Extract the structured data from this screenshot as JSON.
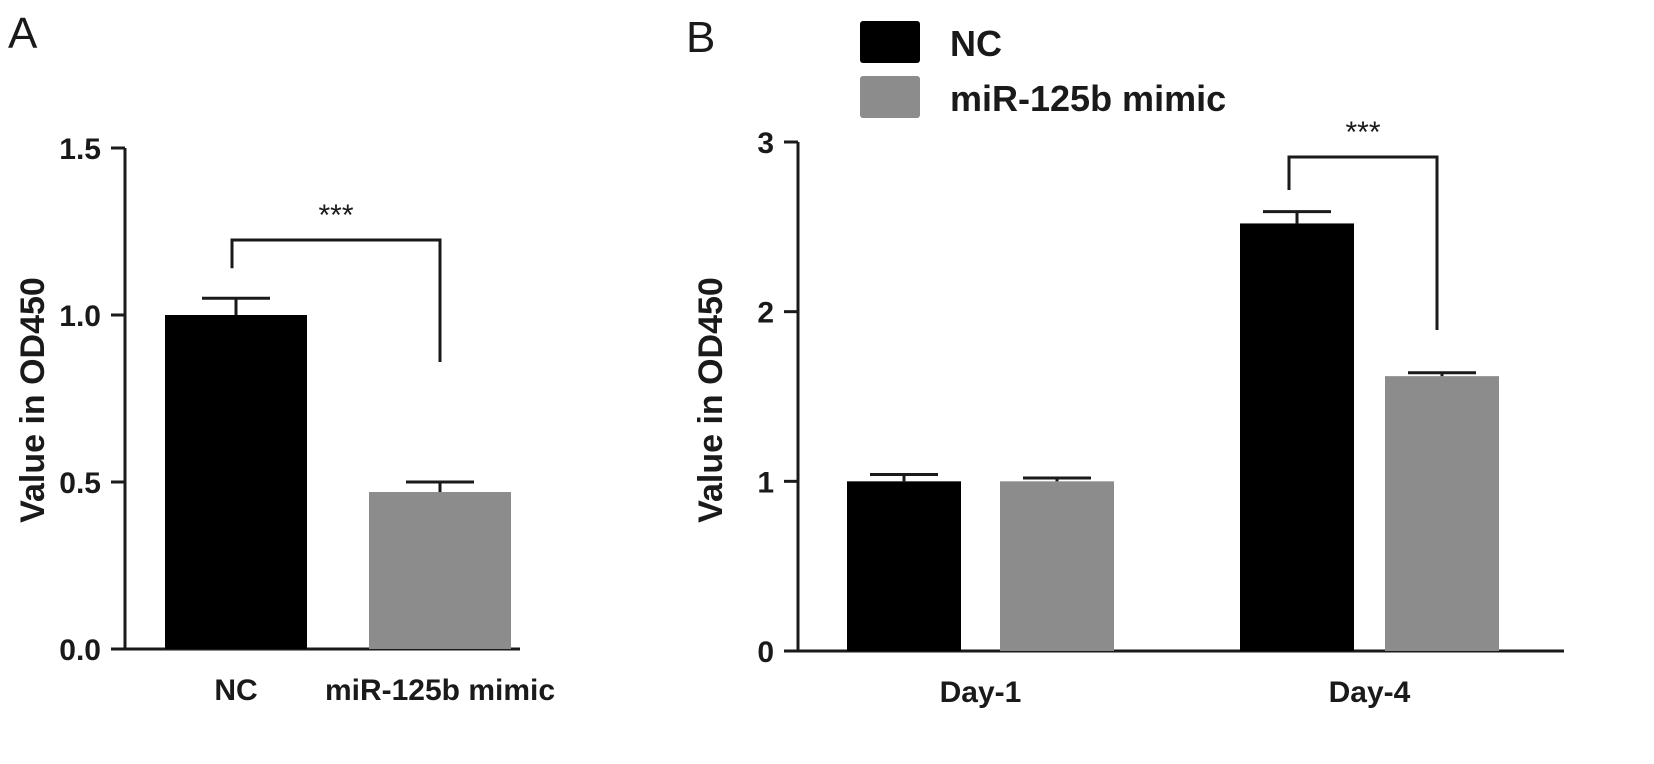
{
  "colors": {
    "nc": "#000000",
    "mimic": "#8c8c8c",
    "axis": "#1a1a1a"
  },
  "chart_data": [
    {
      "type": "bar",
      "panel": "A",
      "title": "",
      "xlabel": "",
      "ylabel": "Value in OD450",
      "ylim": [
        0,
        1.5
      ],
      "yticks": [
        "0.0",
        "0.5",
        "1.0",
        "1.5"
      ],
      "categories": [
        "NC",
        "miR-125b mimic"
      ],
      "values": [
        1.0,
        0.47
      ],
      "errors": [
        0.05,
        0.03
      ],
      "significance": [
        {
          "between": [
            "NC",
            "miR-125b mimic"
          ],
          "label": "***"
        }
      ],
      "grid": false
    },
    {
      "type": "bar",
      "panel": "B",
      "title": "",
      "xlabel": "",
      "ylabel": "Value in OD450",
      "ylim": [
        0,
        3
      ],
      "yticks": [
        "0",
        "1",
        "2",
        "3"
      ],
      "categories": [
        "Day-1",
        "Day-4"
      ],
      "series": [
        {
          "name": "NC",
          "values": [
            1.0,
            2.52
          ],
          "errors": [
            0.04,
            0.07
          ]
        },
        {
          "name": "miR-125b mimic",
          "values": [
            1.0,
            1.62
          ],
          "errors": [
            0.02,
            0.02
          ]
        }
      ],
      "legend_position": "top",
      "significance": [
        {
          "category": "Day-4",
          "label": "***"
        }
      ],
      "grid": false
    }
  ]
}
